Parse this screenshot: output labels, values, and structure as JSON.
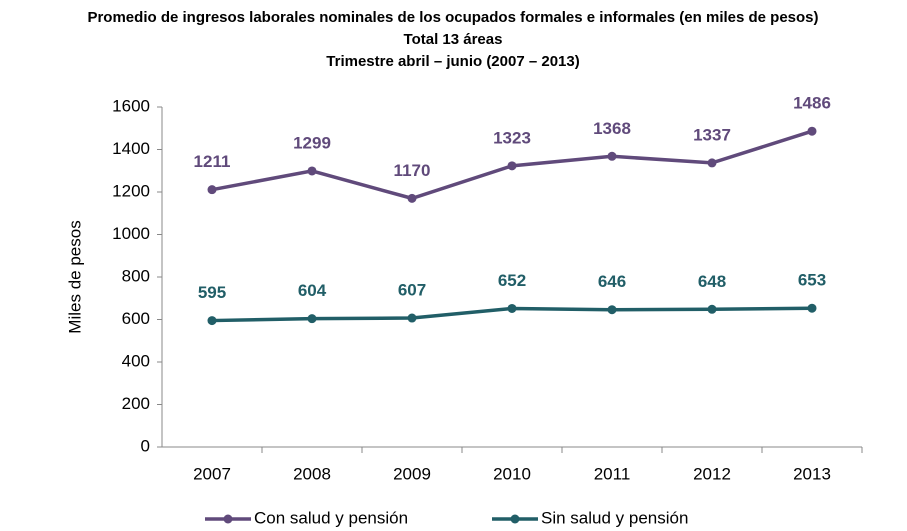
{
  "chart_data": {
    "type": "line",
    "title": "Promedio de ingresos laborales nominales de los ocupados formales e informales (en miles de pesos)",
    "subtitle": [
      "Total 13 áreas",
      "Trimestre abril – junio (2007 – 2013)"
    ],
    "y_label": "Miles de pesos",
    "categories": [
      "2007",
      "2008",
      "2009",
      "2010",
      "2011",
      "2012",
      "2013"
    ],
    "series": [
      {
        "name": "Con salud y pensión",
        "color": "#604a7b",
        "values": [
          1211,
          1299,
          1170,
          1323,
          1368,
          1337,
          1486
        ]
      },
      {
        "name": "Sin salud y pensión",
        "color": "#215e67",
        "values": [
          595,
          604,
          607,
          652,
          646,
          648,
          653
        ]
      }
    ],
    "ylim": [
      0,
      1600
    ],
    "yticks": [
      0,
      200,
      400,
      600,
      800,
      1000,
      1200,
      1400,
      1600
    ],
    "grid": false,
    "legend": "bottom"
  }
}
